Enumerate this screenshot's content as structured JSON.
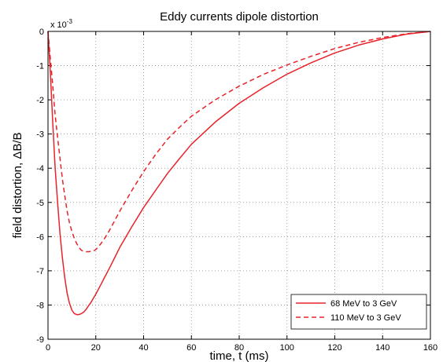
{
  "chart_data": {
    "type": "line",
    "title": "Eddy currents dipole distortion",
    "xlabel": "time, t (ms)",
    "ylabel": "field distortion, ΔB/B",
    "exponent_label": "x 10",
    "exponent_power": "-3",
    "xlim": [
      0,
      160
    ],
    "ylim": [
      -9,
      0
    ],
    "xticks": [
      0,
      20,
      40,
      60,
      80,
      100,
      120,
      140,
      160
    ],
    "yticks": [
      0,
      -1,
      -2,
      -3,
      -4,
      -5,
      -6,
      -7,
      -8,
      -9
    ],
    "grid": true,
    "legend_position": "bottom-right",
    "series_color": "#e8232a",
    "series": [
      {
        "name": "68 MeV to 3 GeV",
        "style": "solid",
        "x": [
          0,
          1,
          2,
          3,
          4,
          5,
          6,
          7,
          8,
          9,
          10,
          11,
          12,
          13,
          14,
          15,
          16,
          17,
          18,
          19,
          20,
          22,
          24,
          26,
          28,
          30,
          35,
          40,
          45,
          50,
          55,
          60,
          70,
          80,
          90,
          100,
          110,
          120,
          130,
          140,
          150,
          160
        ],
        "y": [
          0,
          -1.2,
          -2.7,
          -4.0,
          -5.0,
          -5.9,
          -6.6,
          -7.2,
          -7.65,
          -7.95,
          -8.15,
          -8.25,
          -8.28,
          -8.28,
          -8.25,
          -8.2,
          -8.12,
          -8.02,
          -7.92,
          -7.8,
          -7.68,
          -7.42,
          -7.15,
          -6.88,
          -6.6,
          -6.32,
          -5.72,
          -5.15,
          -4.65,
          -4.15,
          -3.72,
          -3.3,
          -2.65,
          -2.1,
          -1.65,
          -1.25,
          -0.92,
          -0.63,
          -0.4,
          -0.22,
          -0.08,
          0
        ]
      },
      {
        "name": "110 MeV to 3 GeV",
        "style": "dashed",
        "x": [
          0,
          1,
          2,
          3,
          4,
          5,
          6,
          7,
          8,
          9,
          10,
          11,
          12,
          13,
          14,
          15,
          16,
          17,
          18,
          19,
          20,
          22,
          24,
          26,
          28,
          30,
          35,
          40,
          45,
          50,
          55,
          60,
          70,
          80,
          90,
          100,
          110,
          120,
          130,
          140,
          150,
          160
        ],
        "y": [
          0,
          -0.8,
          -1.6,
          -2.45,
          -3.1,
          -3.7,
          -4.3,
          -4.8,
          -5.25,
          -5.6,
          -5.85,
          -6.05,
          -6.2,
          -6.32,
          -6.4,
          -6.43,
          -6.44,
          -6.44,
          -6.43,
          -6.42,
          -6.38,
          -6.22,
          -6.02,
          -5.78,
          -5.52,
          -5.26,
          -4.66,
          -4.1,
          -3.6,
          -3.15,
          -2.8,
          -2.48,
          -2.0,
          -1.6,
          -1.26,
          -0.98,
          -0.73,
          -0.5,
          -0.32,
          -0.18,
          -0.07,
          0
        ]
      }
    ]
  }
}
